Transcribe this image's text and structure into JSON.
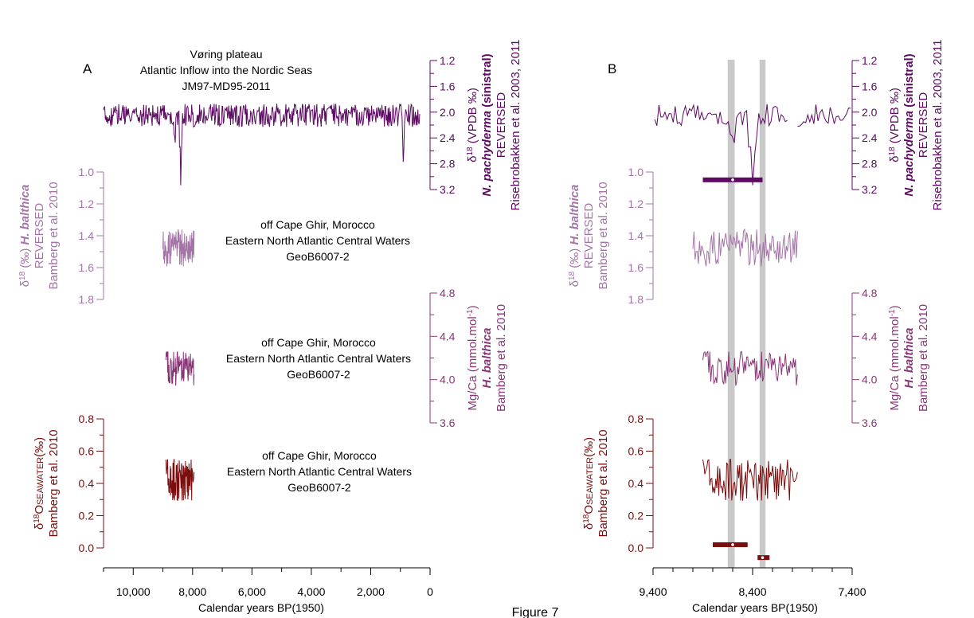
{
  "figure_label": "Figure 7",
  "colors": {
    "purple": "#5c0a62",
    "light_purple": "#a375a6",
    "mauve": "#8b3579",
    "dark_red": "#7a0d0d",
    "shade": "#c9c9c9",
    "bar": "#5c0a62",
    "bar_red": "#7a0d0d"
  },
  "panels": [
    {
      "id": "A",
      "label": "A",
      "xlabel": "Calendar years BP(1950)",
      "x_range": [
        11000,
        0
      ],
      "x_ticks": [
        "10,000",
        "8,000",
        "6,000",
        "4,000",
        "2,000",
        "0"
      ]
    },
    {
      "id": "B",
      "label": "B",
      "xlabel": "Calendar years BP(1950)",
      "x_range": [
        9400,
        7400
      ],
      "x_ticks": [
        "9,400",
        "8,400",
        "7,400"
      ]
    }
  ],
  "axes": [
    {
      "id": "d18o_npach",
      "side": "right",
      "color": "purple",
      "ylim": [
        1.2,
        3.2
      ],
      "reversed": true,
      "ticks": [
        "1.2",
        "1.6",
        "2.0",
        "2.4",
        "2.8",
        "3.2"
      ],
      "label_lines": [
        "δ18O (VPDB ‰)",
        "N. pachyderma (sinistral)",
        "REVERSED",
        "Risebrobakken et al. 2003, 2011"
      ]
    },
    {
      "id": "d18o_hbal",
      "side": "left",
      "color": "light_purple",
      "ylim": [
        1.0,
        1.8
      ],
      "reversed": true,
      "ticks": [
        "1.0",
        "1.2",
        "1.4",
        "1.6",
        "1.8"
      ],
      "label_lines": [
        "δ18O (‰) H. balthica",
        "REVERSED",
        "Bamberg et al. 2010"
      ]
    },
    {
      "id": "mgca",
      "side": "right",
      "color": "mauve",
      "ylim": [
        3.6,
        4.8
      ],
      "reversed": false,
      "ticks": [
        "4.8",
        "4.4",
        "4.0",
        "3.6"
      ],
      "label_lines": [
        "Mg/Ca (mmol.mol-1)",
        "H. balthica",
        "Bamberg et al. 2010"
      ]
    },
    {
      "id": "d18osw",
      "side": "left",
      "color": "dark_red",
      "ylim": [
        0.0,
        0.8
      ],
      "reversed": false,
      "ticks": [
        "0.8",
        "0.6",
        "0.4",
        "0.2",
        "0.0"
      ],
      "label_lines": [
        "δ18OSEAWATER (‰)",
        "Bamberg et al. 2010"
      ]
    }
  ],
  "annotations": [
    {
      "id": "voring",
      "lines": [
        "Vøring plateau",
        "Atlantic Inflow into the Nordic Seas",
        "JM97-MD95-2011"
      ],
      "color": "purple"
    },
    {
      "id": "ghir1",
      "lines": [
        "off Cape Ghir, Morocco",
        "Eastern North Atlantic Central Waters",
        "GeoB6007-2"
      ],
      "color": "light_purple"
    },
    {
      "id": "ghir2",
      "lines": [
        "off Cape Ghir, Morocco",
        "Eastern North Atlantic Central Waters",
        "GeoB6007-2"
      ],
      "color": "mauve"
    },
    {
      "id": "ghir3",
      "lines": [
        "off Cape Ghir, Morocco",
        "Eastern North Atlantic Central Waters",
        "GeoB6007-2"
      ],
      "color": "dark_red"
    }
  ],
  "chart_data": {
    "type": "line",
    "x_unit": "calendar years BP (1950)",
    "series": [
      {
        "axis": "d18o_npach",
        "color": "purple",
        "x_start": 11000,
        "x_end": 350,
        "approx_level": 2.05,
        "noise": 0.18,
        "events": [
          {
            "x": 8400,
            "y": 3.0
          },
          {
            "x": 8600,
            "y": 2.55
          },
          {
            "x": 900,
            "y": 2.65
          }
        ]
      },
      {
        "axis": "d18o_hbal",
        "color": "light_purple",
        "x_start": 9000,
        "x_end": 7950,
        "approx_level": 1.48,
        "noise": 0.12
      },
      {
        "axis": "mgca",
        "color": "mauve",
        "x_start": 8900,
        "x_end": 7950,
        "approx_level": 4.1,
        "noise": 0.16
      },
      {
        "axis": "d18osw",
        "color": "dark_red",
        "x_start": 8900,
        "x_end": 7950,
        "approx_level": 0.42,
        "noise": 0.13
      }
    ],
    "shaded_intervals": [
      [
        8650,
        8580
      ],
      [
        8330,
        8270
      ]
    ],
    "error_bars": [
      {
        "axis": "d18o_npach",
        "x_center": 8600,
        "x_min": 8900,
        "x_max": 8300,
        "y": 3.05,
        "color": "bar"
      },
      {
        "axis": "d18osw",
        "x_center": 8600,
        "x_min": 8800,
        "x_max": 8450,
        "y": 0.02,
        "color": "bar_red"
      },
      {
        "axis": "d18osw",
        "x_center": 8300,
        "x_min": 8350,
        "x_max": 8230,
        "y": -0.06,
        "color": "bar_red"
      }
    ]
  }
}
